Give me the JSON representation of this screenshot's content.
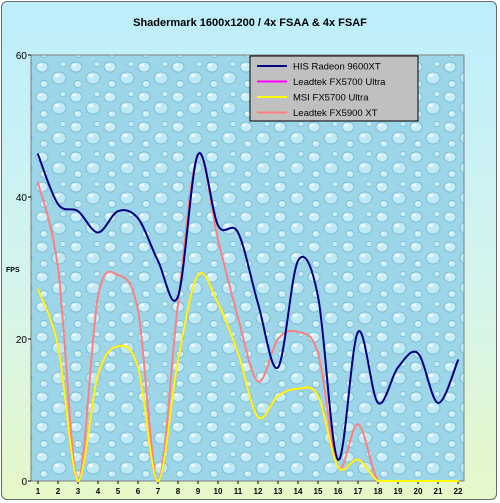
{
  "chart_data": {
    "type": "line",
    "title": "Shadermark 1600x1200 / 4x FSAA & 4x FSAF",
    "xlabel": "",
    "ylabel": "FPS",
    "x": [
      1,
      2,
      3,
      4,
      5,
      6,
      7,
      8,
      9,
      10,
      11,
      12,
      13,
      14,
      15,
      16,
      17,
      18,
      19,
      20,
      21,
      22
    ],
    "xticks": [
      "1",
      "2",
      "3",
      "4",
      "5",
      "6",
      "7",
      "8",
      "9",
      "10",
      "11",
      "12",
      "13",
      "14",
      "15",
      "16",
      "17",
      "18",
      "19",
      "20",
      "21",
      "22"
    ],
    "ylim": [
      0,
      60
    ],
    "yticks": [
      "0",
      "20",
      "40",
      "60"
    ],
    "legend_position": "top-right",
    "series": [
      {
        "name": "HIS Radeon 9600XT",
        "color": "#000080",
        "values": [
          46,
          39,
          38,
          35,
          38,
          37,
          31,
          26,
          46,
          36,
          35,
          25,
          16,
          31,
          26,
          3,
          21,
          11,
          16,
          18,
          11,
          17
        ]
      },
      {
        "name": "Leadtek FX5700 Ultra",
        "color": "#ff00ff",
        "values": [
          27,
          19,
          0,
          15,
          19,
          16,
          0,
          17,
          29,
          25,
          18,
          9,
          12,
          13,
          12,
          2,
          3,
          0,
          0,
          0,
          0,
          0
        ]
      },
      {
        "name": "MSI FX5700 Ultra",
        "color": "#ffff00",
        "values": [
          27,
          19,
          0,
          15,
          19,
          16,
          0,
          17,
          29,
          25,
          18,
          9,
          12,
          13,
          12,
          2,
          3,
          0,
          0,
          0,
          0,
          0
        ]
      },
      {
        "name": "Leadtek FX5900 XT",
        "color": "#ff8080",
        "values": [
          42,
          30,
          0,
          26,
          29,
          24,
          0,
          25,
          46,
          34,
          23,
          14,
          20,
          21,
          18,
          2,
          8,
          0,
          0,
          0,
          0,
          0
        ]
      }
    ]
  }
}
